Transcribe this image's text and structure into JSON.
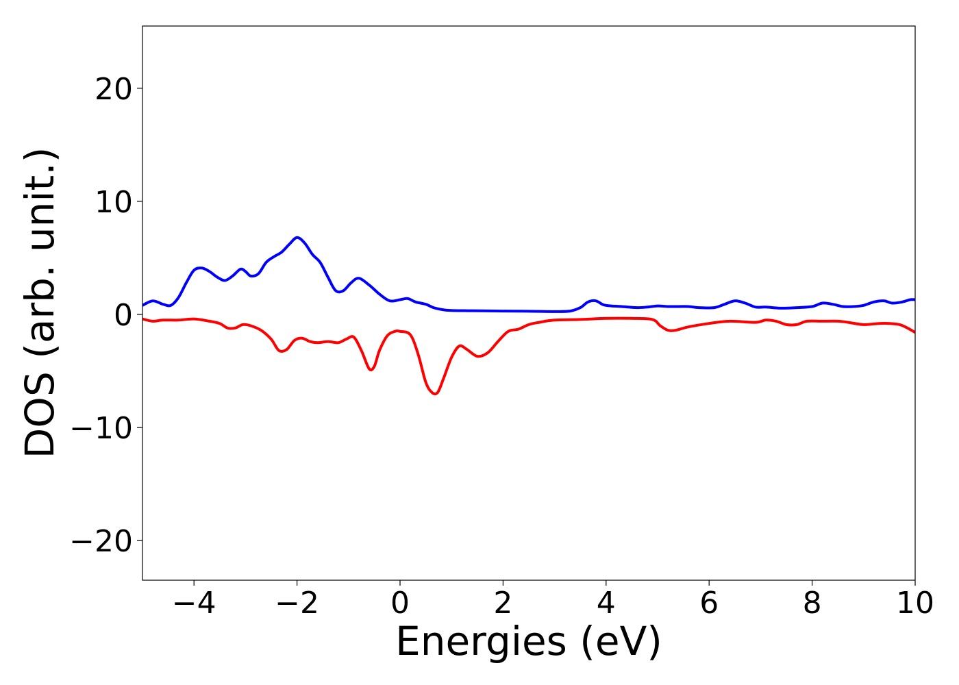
{
  "chart_data": {
    "type": "line",
    "title": "",
    "xlabel": "Energies (eV)",
    "ylabel": "DOS (arb. unit.)",
    "xlim": [
      -5,
      10
    ],
    "ylim": [
      -23.5,
      25.5
    ],
    "xticks": [
      -4,
      -2,
      0,
      2,
      4,
      6,
      8,
      10
    ],
    "xtick_labels": [
      "−4",
      "−2",
      "0",
      "2",
      "4",
      "6",
      "8",
      "10"
    ],
    "yticks": [
      -20,
      -10,
      0,
      10,
      20
    ],
    "ytick_labels": [
      "−20",
      "−10",
      "0",
      "10",
      "20"
    ],
    "grid": false,
    "legend": "none",
    "series": [
      {
        "color": "#0000ff",
        "x": [
          -5.0,
          -4.8,
          -4.6,
          -4.45,
          -4.3,
          -4.15,
          -4.0,
          -3.85,
          -3.7,
          -3.55,
          -3.4,
          -3.25,
          -3.1,
          -3.0,
          -2.9,
          -2.75,
          -2.6,
          -2.45,
          -2.3,
          -2.15,
          -2.0,
          -1.85,
          -1.7,
          -1.55,
          -1.4,
          -1.25,
          -1.1,
          -0.95,
          -0.8,
          -0.6,
          -0.4,
          -0.2,
          0.0,
          0.15,
          0.3,
          0.5,
          0.65,
          0.85,
          1.0,
          1.3,
          1.6,
          2.0,
          2.5,
          3.0,
          3.3,
          3.5,
          3.65,
          3.8,
          3.95,
          4.1,
          4.3,
          4.6,
          4.8,
          5.0,
          5.2,
          5.4,
          5.6,
          5.8,
          6.1,
          6.3,
          6.5,
          6.7,
          6.9,
          7.1,
          7.4,
          7.7,
          8.0,
          8.2,
          8.4,
          8.6,
          8.8,
          9.0,
          9.2,
          9.4,
          9.55,
          9.75,
          9.9,
          10.0
        ],
        "y": [
          0.8,
          1.2,
          0.9,
          0.8,
          1.5,
          2.8,
          3.9,
          4.1,
          3.8,
          3.3,
          3.0,
          3.4,
          4.0,
          3.8,
          3.4,
          3.6,
          4.6,
          5.1,
          5.5,
          6.2,
          6.8,
          6.3,
          5.3,
          4.6,
          3.3,
          2.1,
          2.1,
          2.8,
          3.2,
          2.6,
          1.8,
          1.2,
          1.3,
          1.4,
          1.1,
          0.9,
          0.6,
          0.4,
          0.35,
          0.33,
          0.32,
          0.3,
          0.28,
          0.25,
          0.3,
          0.6,
          1.1,
          1.2,
          0.85,
          0.75,
          0.7,
          0.6,
          0.65,
          0.75,
          0.7,
          0.7,
          0.7,
          0.6,
          0.6,
          0.9,
          1.2,
          1.0,
          0.65,
          0.65,
          0.55,
          0.6,
          0.7,
          1.0,
          0.9,
          0.7,
          0.7,
          0.8,
          1.1,
          1.2,
          1.0,
          1.1,
          1.3,
          1.3
        ]
      },
      {
        "color": "#ff0000",
        "x": [
          -5.0,
          -4.8,
          -4.6,
          -4.3,
          -4.0,
          -3.7,
          -3.5,
          -3.35,
          -3.2,
          -3.05,
          -2.9,
          -2.7,
          -2.5,
          -2.35,
          -2.2,
          -2.05,
          -1.9,
          -1.75,
          -1.6,
          -1.4,
          -1.2,
          -1.05,
          -0.9,
          -0.75,
          -0.6,
          -0.5,
          -0.4,
          -0.25,
          -0.1,
          0.0,
          0.2,
          0.35,
          0.5,
          0.62,
          0.73,
          0.85,
          1.0,
          1.15,
          1.3,
          1.5,
          1.7,
          1.9,
          2.1,
          2.3,
          2.5,
          2.7,
          3.0,
          3.5,
          4.0,
          4.5,
          4.9,
          5.05,
          5.2,
          5.35,
          5.6,
          6.0,
          6.4,
          6.9,
          7.1,
          7.3,
          7.5,
          7.7,
          7.9,
          8.2,
          8.5,
          8.7,
          9.0,
          9.3,
          9.5,
          9.7,
          9.85,
          10.0
        ],
        "y": [
          -0.4,
          -0.6,
          -0.5,
          -0.5,
          -0.4,
          -0.6,
          -0.8,
          -1.2,
          -1.2,
          -0.9,
          -1.0,
          -1.4,
          -2.2,
          -3.2,
          -3.1,
          -2.3,
          -2.1,
          -2.4,
          -2.5,
          -2.4,
          -2.5,
          -2.2,
          -2.0,
          -3.2,
          -4.8,
          -4.6,
          -3.2,
          -1.9,
          -1.5,
          -1.5,
          -1.8,
          -3.5,
          -6.0,
          -6.9,
          -6.9,
          -5.6,
          -3.8,
          -2.8,
          -3.1,
          -3.7,
          -3.4,
          -2.4,
          -1.5,
          -1.3,
          -0.9,
          -0.7,
          -0.5,
          -0.45,
          -0.35,
          -0.35,
          -0.45,
          -1.0,
          -1.4,
          -1.4,
          -1.1,
          -0.8,
          -0.6,
          -0.7,
          -0.5,
          -0.6,
          -0.9,
          -0.9,
          -0.6,
          -0.6,
          -0.6,
          -0.7,
          -0.9,
          -0.8,
          -0.8,
          -0.9,
          -1.2,
          -1.6
        ]
      }
    ]
  }
}
